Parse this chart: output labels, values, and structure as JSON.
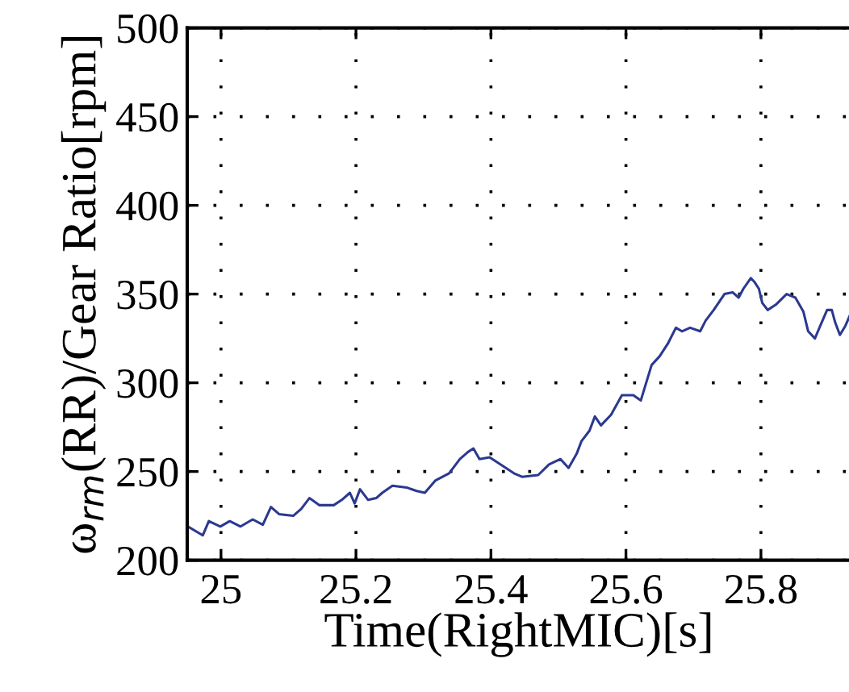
{
  "chart_data": {
    "type": "line",
    "xlabel": "Time(RightMIC)[s]",
    "ylabel": "ω$_{rm}$(RR)/Gear Ratio[rpm]",
    "xlim": [
      24.95,
      25.933
    ],
    "xticks": [
      25,
      25.2,
      25.4,
      25.6,
      25.8
    ],
    "ylim": [
      200,
      500
    ],
    "yticks": [
      200,
      250,
      300,
      350,
      400,
      450,
      500
    ],
    "grid": true,
    "line_style": "solid",
    "marker": "none",
    "series": [
      {
        "color": "#2b3990",
        "x": [
          24.951,
          24.973,
          24.982,
          24.999,
          25.013,
          25.029,
          25.047,
          25.062,
          25.074,
          25.086,
          25.107,
          25.119,
          25.131,
          25.146,
          25.167,
          25.179,
          25.191,
          25.198,
          25.206,
          25.218,
          25.23,
          25.239,
          25.254,
          25.275,
          25.29,
          25.302,
          25.318,
          25.338,
          25.354,
          25.366,
          25.374,
          25.383,
          25.398,
          25.414,
          25.434,
          25.446,
          25.47,
          25.486,
          25.503,
          25.515,
          25.527,
          25.534,
          25.546,
          25.554,
          25.563,
          25.578,
          25.594,
          25.611,
          25.622,
          25.638,
          25.65,
          25.662,
          25.674,
          25.683,
          25.695,
          25.71,
          25.718,
          25.73,
          25.746,
          25.758,
          25.767,
          25.774,
          25.785,
          25.79,
          25.797,
          25.802,
          25.81,
          25.822,
          25.838,
          25.851,
          25.863,
          25.87,
          25.88,
          25.89,
          25.898,
          25.905,
          25.91,
          25.917,
          25.925,
          25.933
        ],
        "values": [
          219,
          214,
          222,
          219,
          222,
          219,
          223,
          220,
          230,
          226,
          225,
          229,
          235,
          231,
          231,
          234,
          238,
          232,
          240,
          234,
          235,
          238,
          242,
          241,
          239,
          238,
          245,
          249,
          257,
          261,
          263,
          257,
          258,
          254,
          249,
          247,
          248,
          254,
          257,
          252,
          260,
          267,
          273,
          281,
          276,
          282,
          293,
          293,
          290,
          310,
          315,
          322,
          331,
          329,
          331,
          329,
          335,
          341,
          350,
          351,
          348,
          353,
          359,
          357,
          353,
          345,
          341,
          344,
          350,
          348,
          340,
          329,
          325,
          334,
          341,
          341,
          334,
          327,
          332,
          339
        ]
      }
    ]
  }
}
